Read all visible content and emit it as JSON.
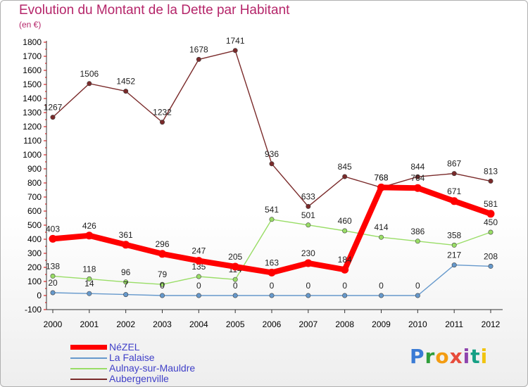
{
  "chart_data": {
    "type": "line",
    "title": "Evolution du Montant de la Dette par Habitant",
    "subtitle": "(en €)",
    "x": [
      "2000",
      "2001",
      "2002",
      "2003",
      "2004",
      "2005",
      "2006",
      "2007",
      "2008",
      "2009",
      "2010",
      "2011",
      "2012"
    ],
    "ylim": [
      -100,
      1800
    ],
    "yticks": [
      -100,
      0,
      100,
      200,
      300,
      400,
      500,
      600,
      700,
      800,
      900,
      1000,
      1100,
      1200,
      1300,
      1400,
      1500,
      1600,
      1700,
      1800
    ],
    "grid": false,
    "legend_position": "bottom-left",
    "series": [
      {
        "name": "NéZEL",
        "color": "#ff0000",
        "values": [
          403,
          426,
          361,
          296,
          247,
          205,
          163,
          230,
          184,
          768,
          764,
          671,
          581
        ]
      },
      {
        "name": "La Falaise",
        "color": "#6699cc",
        "values": [
          20,
          14,
          7,
          0,
          0,
          0,
          0,
          0,
          0,
          0,
          0,
          217,
          208
        ]
      },
      {
        "name": "Aulnay-sur-Mauldre",
        "color": "#99dd66",
        "values": [
          138,
          118,
          96,
          79,
          135,
          114,
          541,
          501,
          460,
          414,
          386,
          358,
          450
        ]
      },
      {
        "name": "Aubergenville",
        "color": "#7a2a2a",
        "values": [
          1267,
          1506,
          1452,
          1232,
          1678,
          1741,
          936,
          633,
          845,
          768,
          844,
          867,
          813
        ]
      }
    ]
  },
  "logo": {
    "letters": [
      {
        "ch": "P",
        "color": "#3a7bd5"
      },
      {
        "ch": "r",
        "color": "#2e9d3a"
      },
      {
        "ch": "o",
        "color": "#f39c12"
      },
      {
        "ch": "x",
        "color": "#e74c3c"
      },
      {
        "ch": "i",
        "color": "#8e44ad"
      },
      {
        "ch": "t",
        "color": "#16a085"
      },
      {
        "ch": "i",
        "color": "#f1c40f"
      }
    ]
  }
}
